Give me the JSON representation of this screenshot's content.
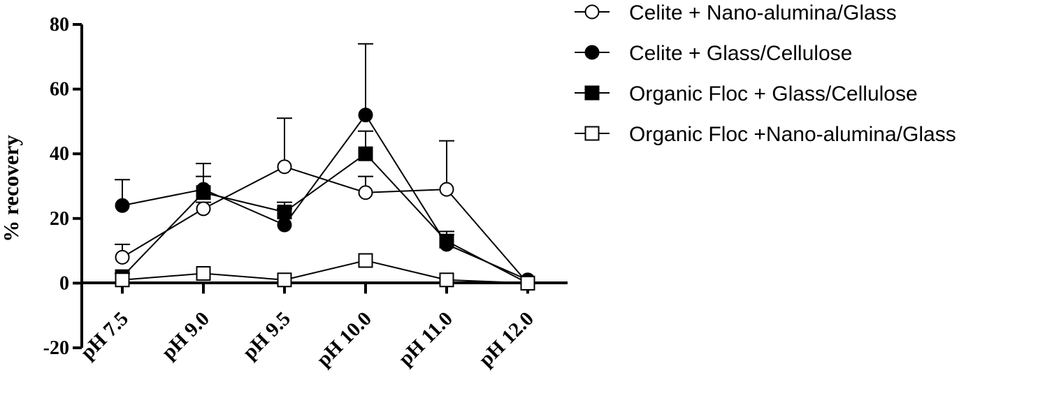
{
  "chart_data": {
    "type": "line",
    "title": "",
    "xlabel": "",
    "ylabel": "% recovery",
    "ylim": [
      -20,
      80
    ],
    "yticks": [
      -20,
      0,
      20,
      40,
      60,
      80
    ],
    "categories": [
      "pH 7.5",
      "pH 9.0",
      "pH 9.5",
      "pH 10.0",
      "pH 11.0",
      "pH 12.0"
    ],
    "legend_position": "top-right",
    "series": [
      {
        "name": "Celite + Nano-alumina/Glass",
        "marker": "circle-open",
        "values": [
          8,
          23,
          36,
          28,
          29,
          0
        ],
        "error": [
          4,
          2,
          15,
          5,
          15,
          0
        ]
      },
      {
        "name": "Celite + Glass/Cellulose",
        "marker": "circle-filled",
        "values": [
          24,
          29,
          18,
          52,
          12,
          1
        ],
        "error": [
          8,
          8,
          5,
          22,
          3,
          0
        ]
      },
      {
        "name": "Organic Floc + Glass/Cellulose",
        "marker": "square-filled",
        "values": [
          2,
          28,
          22,
          40,
          13,
          0
        ],
        "error": [
          1,
          5,
          3,
          7,
          3,
          0
        ]
      },
      {
        "name": "Organic Floc +Nano-alumina/Glass",
        "marker": "square-open",
        "values": [
          1,
          3,
          1,
          7,
          1,
          0
        ],
        "error": [
          0,
          0,
          0,
          0,
          0,
          0
        ]
      }
    ]
  }
}
